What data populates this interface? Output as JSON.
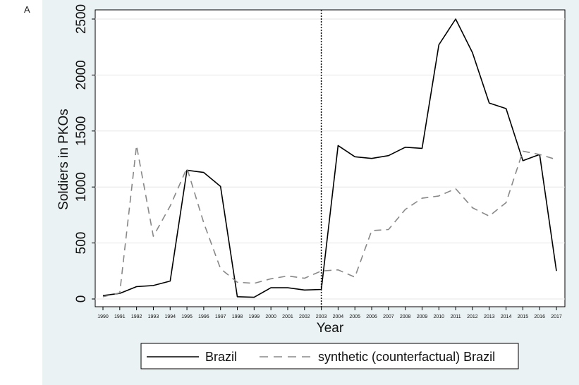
{
  "panel_label": "A",
  "chart_data": {
    "type": "line",
    "xlabel": "Year",
    "ylabel": "Soldiers in PKOs",
    "xlim": [
      1990,
      2017
    ],
    "ylim": [
      0,
      2500
    ],
    "y_ticks": [
      0,
      500,
      1000,
      1500,
      2000,
      2500
    ],
    "x_ticks": [
      1990,
      1991,
      1992,
      1993,
      1994,
      1995,
      1996,
      1997,
      1998,
      1999,
      2000,
      2001,
      2002,
      2003,
      2004,
      2005,
      2006,
      2007,
      2008,
      2009,
      2010,
      2011,
      2012,
      2013,
      2014,
      2015,
      2016,
      2017
    ],
    "x_tick_labels": [
      "1990",
      "1991",
      "1992",
      "1993",
      "1994",
      "1995",
      "1996",
      "1997",
      "1998",
      "1999",
      "2000",
      "2001",
      "2002",
      "2003",
      "2004",
      "2005",
      "2006",
      "2007",
      "2008",
      "2009",
      "2010",
      "2011",
      "2012",
      "2013",
      "2014",
      "2015",
      "2016",
      "2017"
    ],
    "grid": true,
    "vertical_line": 2003,
    "x": [
      1990,
      1991,
      1992,
      1993,
      1994,
      1995,
      1996,
      1997,
      1998,
      1999,
      2000,
      2001,
      2002,
      2003,
      2004,
      2005,
      2006,
      2007,
      2008,
      2009,
      2010,
      2011,
      2012,
      2013,
      2014,
      2015,
      2016,
      2017
    ],
    "series": [
      {
        "name": "Brazil",
        "style": "solid",
        "color": "#000000",
        "values": [
          30,
          50,
          110,
          120,
          160,
          1150,
          1130,
          1005,
          20,
          15,
          100,
          100,
          80,
          85,
          1370,
          1270,
          1255,
          1280,
          1355,
          1345,
          2270,
          2500,
          2200,
          1750,
          1700,
          1235,
          1290,
          250
        ]
      },
      {
        "name": "synthetic (counterfactual) Brazil",
        "style": "dashed",
        "color": "#888888",
        "values": [
          20,
          55,
          1370,
          560,
          830,
          1170,
          680,
          270,
          150,
          140,
          180,
          205,
          185,
          250,
          260,
          195,
          610,
          620,
          800,
          900,
          920,
          985,
          815,
          740,
          860,
          1320,
          1290,
          1245
        ]
      }
    ],
    "legend_position": "bottom"
  }
}
